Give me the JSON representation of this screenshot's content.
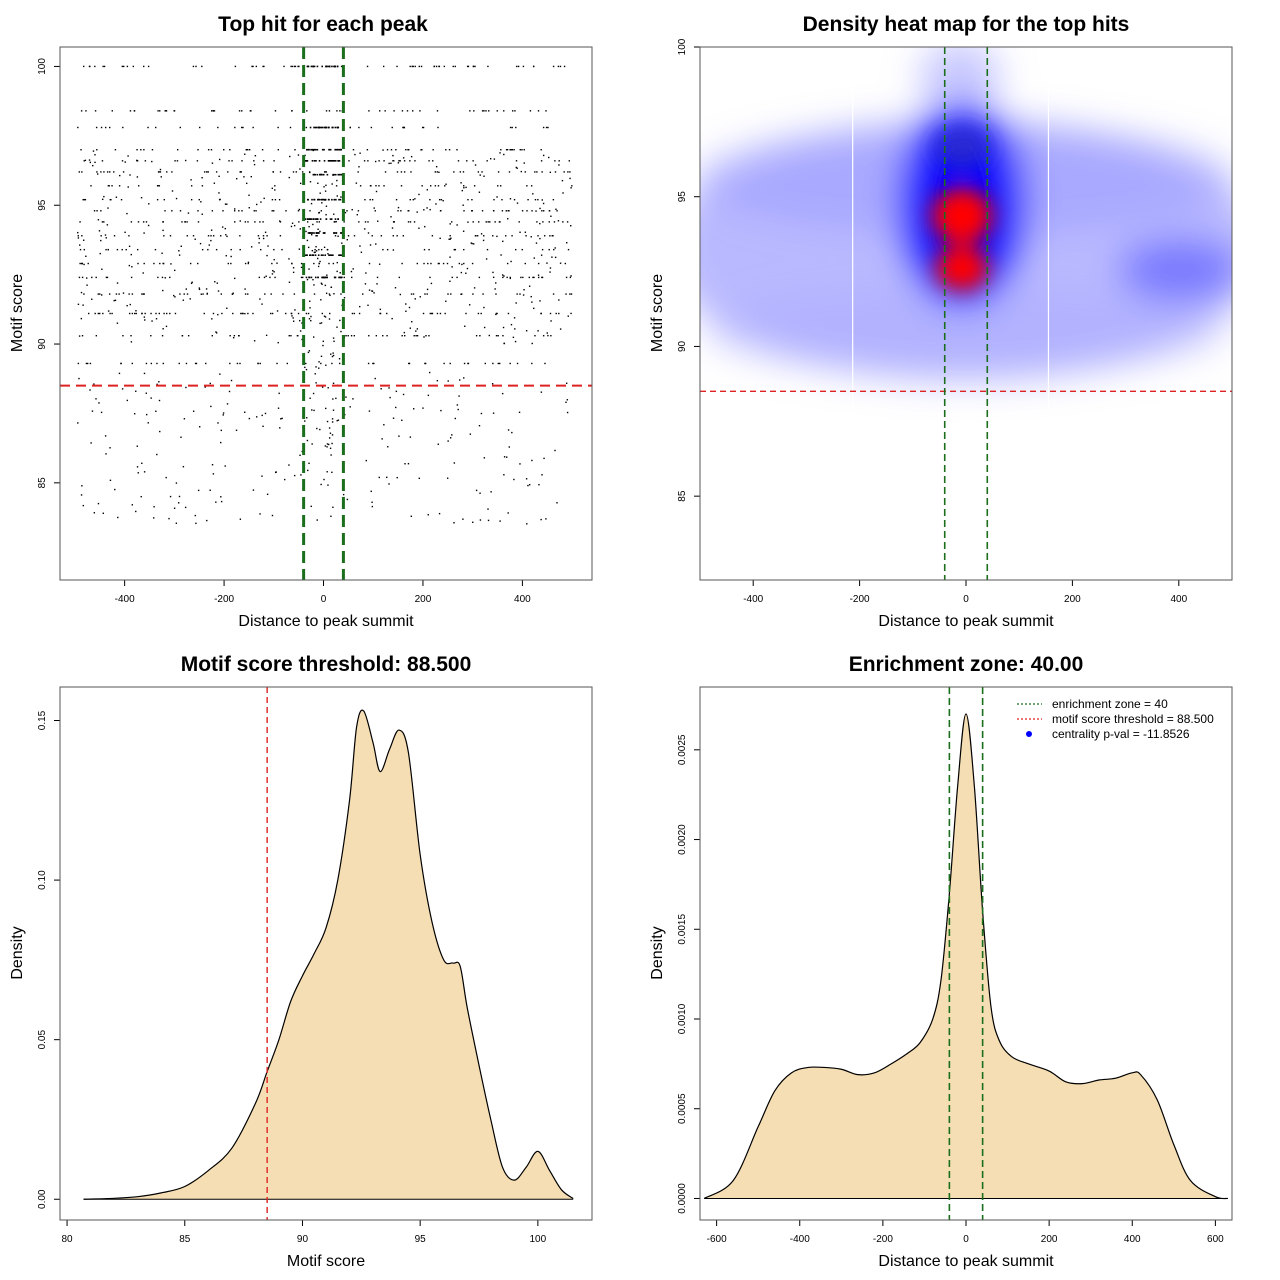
{
  "colors": {
    "threshold_line": "#dd2222",
    "zone_line": "#1b6e1b",
    "density_fill": "#f5deb3",
    "heat_low": "#8080ff",
    "heat_mid": "#0000ff",
    "heat_high": "#ff0000",
    "legend_dot": "#0000ff",
    "point": "#000000"
  },
  "chart_data": [
    {
      "type": "scatter",
      "title": "Top hit for each peak",
      "xlabel": "Distance to peak summit",
      "ylabel": "Motif score",
      "xlim": [
        -530,
        540
      ],
      "ylim": [
        81.5,
        100.7
      ],
      "xticks": [
        -400,
        -200,
        0,
        200,
        400
      ],
      "xtick_labels": [
        "-400",
        "-200",
        "0",
        "200",
        "400"
      ],
      "yticks": [
        85,
        90,
        95,
        100
      ],
      "ytick_labels": [
        "85",
        "90",
        "95",
        "100"
      ],
      "score_threshold": 88.5,
      "zone_lines_x": [
        -40,
        40
      ],
      "point_density": {
        "x_range": [
          -495,
          500
        ],
        "score_levels": [
          89.3,
          90.3,
          91.1,
          91.8,
          92.4,
          92.9,
          93.4,
          93.9,
          94.4,
          94.8,
          95.2,
          95.7,
          96.2,
          96.6,
          97.0,
          97.8,
          98.4,
          100.0
        ],
        "central_band_scores": [
          92.4,
          93.2,
          94.0,
          94.5,
          95.2,
          96.1,
          96.6,
          97.0,
          97.8,
          100.0
        ]
      }
    },
    {
      "type": "heatmap",
      "title": "Density heat map for the top hits",
      "xlabel": "Distance to peak summit",
      "ylabel": "Motif score",
      "xlim": [
        -500,
        500
      ],
      "ylim": [
        82.2,
        100.0
      ],
      "xticks": [
        -400,
        -200,
        0,
        200,
        400
      ],
      "xtick_labels": [
        "-400",
        "-200",
        "0",
        "200",
        "400"
      ],
      "yticks": [
        85,
        90,
        95,
        100
      ],
      "ytick_labels": [
        "85",
        "90",
        "95",
        "100"
      ],
      "score_threshold": 88.5,
      "zone_lines_x": [
        -40,
        40
      ],
      "white_lines_x": [
        -213,
        155
      ],
      "hotspots": [
        {
          "x": -5,
          "y": 94.3,
          "level": "high"
        },
        {
          "x": -5,
          "y": 92.6,
          "level": "high"
        },
        {
          "x": -5,
          "y": 96.6,
          "level": "mid"
        },
        {
          "x": 420,
          "y": 92.5,
          "level": "low"
        }
      ]
    },
    {
      "type": "area",
      "title": "Motif score threshold: 88.500",
      "xlabel": "Motif score",
      "ylabel": "Density",
      "xlim": [
        79.7,
        102.3
      ],
      "ylim": [
        -0.0065,
        0.1605
      ],
      "xticks": [
        80,
        85,
        90,
        95,
        100
      ],
      "xtick_labels": [
        "80",
        "85",
        "90",
        "95",
        "100"
      ],
      "yticks": [
        0.0,
        0.05,
        0.1,
        0.15
      ],
      "ytick_labels": [
        "0.00",
        "0.05",
        "0.10",
        "0.15"
      ],
      "score_threshold": 88.5,
      "x": [
        80.7,
        82,
        83,
        84,
        85,
        86,
        87,
        88,
        88.5,
        89,
        89.5,
        90,
        90.5,
        91,
        91.5,
        92,
        92.3,
        92.6,
        93,
        93.3,
        93.7,
        94.1,
        94.5,
        95,
        95.5,
        96,
        96.4,
        96.7,
        97,
        97.5,
        98,
        98.5,
        99,
        99.5,
        100,
        100.5,
        101,
        101.5
      ],
      "y": [
        0.0,
        0.0003,
        0.0008,
        0.002,
        0.004,
        0.009,
        0.016,
        0.03,
        0.04,
        0.05,
        0.062,
        0.07,
        0.077,
        0.085,
        0.1,
        0.125,
        0.148,
        0.153,
        0.143,
        0.134,
        0.141,
        0.147,
        0.14,
        0.108,
        0.087,
        0.075,
        0.074,
        0.073,
        0.06,
        0.042,
        0.025,
        0.01,
        0.006,
        0.01,
        0.015,
        0.009,
        0.003,
        0.0002
      ]
    },
    {
      "type": "area",
      "title": "Enrichment zone: 40.00",
      "xlabel": "Distance to peak summit",
      "ylabel": "Density",
      "xlim": [
        -640,
        640
      ],
      "ylim": [
        -0.00012,
        0.00285
      ],
      "xticks": [
        -600,
        -400,
        -200,
        0,
        200,
        400,
        600
      ],
      "xtick_labels": [
        "-600",
        "-400",
        "-200",
        "0",
        "200",
        "400",
        "600"
      ],
      "yticks": [
        0.0,
        0.0005,
        0.001,
        0.0015,
        0.002,
        0.0025
      ],
      "ytick_labels": [
        "0.0000",
        "0.0005",
        "0.0010",
        "0.0015",
        "0.0020",
        "0.0025"
      ],
      "zone_lines_x": [
        -40,
        40
      ],
      "x": [
        -630,
        -560,
        -500,
        -460,
        -420,
        -380,
        -340,
        -300,
        -260,
        -220,
        -180,
        -140,
        -110,
        -80,
        -60,
        -40,
        -20,
        0,
        20,
        40,
        60,
        80,
        110,
        150,
        200,
        240,
        280,
        320,
        360,
        400,
        420,
        460,
        500,
        540,
        600,
        630
      ],
      "y": [
        0.0,
        0.0001,
        0.0004,
        0.0006,
        0.0007,
        0.00073,
        0.00073,
        0.00072,
        0.00069,
        0.0007,
        0.00075,
        0.00081,
        0.00087,
        0.001,
        0.00122,
        0.0017,
        0.0023,
        0.0027,
        0.0023,
        0.0016,
        0.00107,
        0.00088,
        0.00079,
        0.00075,
        0.00071,
        0.00065,
        0.00064,
        0.00066,
        0.00067,
        0.0007,
        0.00069,
        0.00055,
        0.0003,
        0.0001,
        1e-05,
        0.0
      ]
    }
  ],
  "legend": {
    "entries": [
      {
        "label": "enrichment zone = 40",
        "marker": "dotted-line",
        "color": "#1b6e1b"
      },
      {
        "label": "motif score threshold = 88.500",
        "marker": "dotted-line",
        "color": "#dd2222"
      },
      {
        "label": "centrality p-val = -11.8526",
        "marker": "dot",
        "color": "#0000ff"
      }
    ]
  }
}
